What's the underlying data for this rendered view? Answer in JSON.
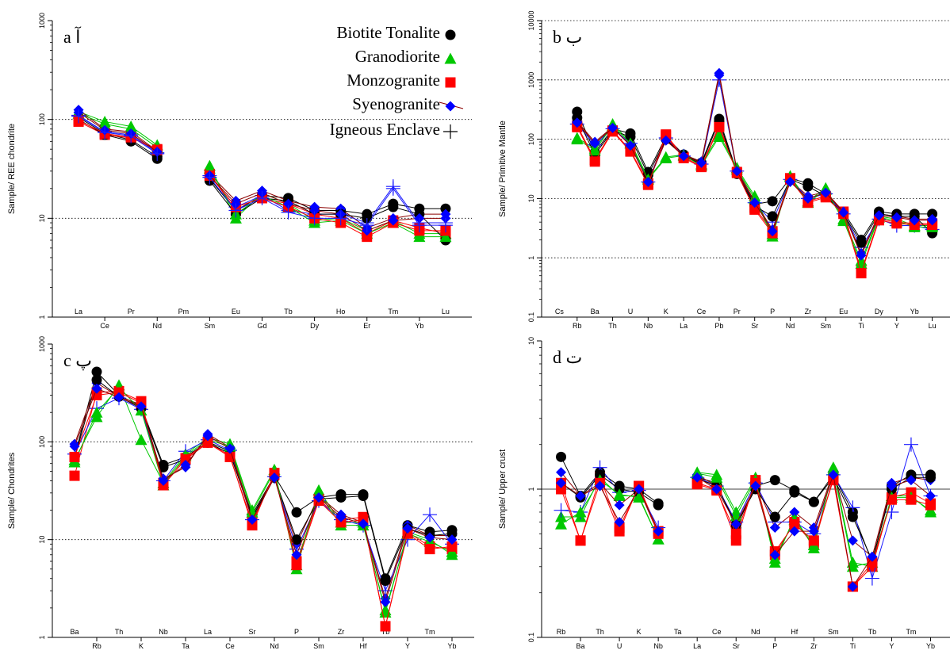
{
  "legend": {
    "entries": [
      {
        "label": "Biotite Tonalite",
        "color": "#000000",
        "marker": "circle"
      },
      {
        "label": "Granodiorite",
        "color": "#00c800",
        "marker": "triangle"
      },
      {
        "label": "Monzogranite",
        "color": "#ff0000",
        "marker": "square"
      },
      {
        "label": "Syenogranite",
        "color": "#0000ff",
        "marker": "diamond",
        "line_color": "#8b0000"
      },
      {
        "label": "Igneous Enclave",
        "color": "#000000",
        "marker": "plus"
      }
    ]
  },
  "chart_data": [
    {
      "type": "line",
      "panel_label": "a آ",
      "ylabel": "Sample/ REE chondrite",
      "yscale": "log",
      "ylim": [
        1,
        1000
      ],
      "yticks": [
        "1",
        "10",
        "100",
        "1000"
      ],
      "gridlines": [
        10,
        100
      ],
      "grid_style": "dotted",
      "categories": [
        "La",
        "Ce",
        "Pr",
        "Nd",
        "Pm",
        "Sm",
        "Eu",
        "Gd",
        "Tb",
        "Dy",
        "Ho",
        "Er",
        "Tm",
        "Yb",
        "Lu"
      ],
      "series": [
        {
          "name": "Biotite Tonalite",
          "values": [
            105,
            72,
            62,
            42,
            null,
            25,
            12,
            17,
            16,
            12,
            12,
            11,
            14,
            12.5,
            12.5
          ]
        },
        {
          "name": "Granodiorite",
          "values": [
            120,
            95,
            85,
            55,
            null,
            34,
            10,
            18,
            14,
            9.5,
            10,
            7.5,
            9.5,
            7,
            7
          ]
        },
        {
          "name": "Monzogranite",
          "values": [
            95,
            70,
            65,
            50,
            null,
            28,
            12,
            16,
            14,
            11,
            10,
            7,
            9.5,
            8,
            7
          ]
        },
        {
          "name": "Syenogranite",
          "values": [
            125,
            80,
            75,
            48,
            null,
            28,
            15,
            19,
            15,
            13,
            12.5,
            8,
            10,
            11,
            11
          ]
        },
        {
          "name": "Igneous Enclave",
          "values": [
            110,
            75,
            70,
            46,
            null,
            27,
            13,
            17,
            12,
            11,
            11,
            9,
            21,
            9,
            9
          ]
        }
      ],
      "extra_series": [
        {
          "series": "Biotite Tonalite",
          "values": [
            100,
            70,
            60,
            40,
            null,
            24,
            11,
            16,
            15,
            11,
            11,
            10,
            13,
            11,
            6
          ]
        },
        {
          "series": "Granodiorite",
          "values": [
            115,
            90,
            80,
            52,
            null,
            32,
            11,
            17,
            13,
            9,
            9.5,
            7,
            9,
            6.5,
            6.5
          ]
        },
        {
          "series": "Monzogranite",
          "values": [
            98,
            72,
            66,
            49,
            null,
            27,
            13,
            16,
            13,
            10,
            9,
            6.5,
            9,
            7.5,
            7.5
          ]
        },
        {
          "series": "Syenogranite",
          "values": [
            118,
            78,
            72,
            47,
            null,
            27,
            14,
            18,
            14,
            12,
            11,
            7.5,
            9.5,
            10,
            10
          ]
        },
        {
          "series": "Igneous Enclave",
          "values": [
            108,
            74,
            68,
            45,
            null,
            26,
            12,
            16,
            11.5,
            10,
            10,
            8.5,
            20,
            8.5,
            8.5
          ]
        }
      ]
    },
    {
      "type": "line",
      "panel_label": "b ب",
      "ylabel": "Sample/ Primitive Mantle",
      "yscale": "log",
      "ylim": [
        0.1,
        10000
      ],
      "yticks": [
        "0.1",
        "1",
        "10",
        "100",
        "1000",
        "10000"
      ],
      "gridlines": [
        1,
        10,
        100,
        1000,
        10000
      ],
      "grid_style": "dotted",
      "categories": [
        "Cs",
        "Rb",
        "Ba",
        "Th",
        "U",
        "Nb",
        "K",
        "La",
        "Ce",
        "Pb",
        "Pr",
        "Sr",
        "P",
        "Nd",
        "Zr",
        "Sm",
        "Eu",
        "Ti",
        "Dy",
        "Y",
        "Yb",
        "Lu"
      ],
      "series": [
        {
          "name": "Biotite Tonalite",
          "values": [
            null,
            290,
            60,
            150,
            125,
            28,
            110,
            55,
            40,
            220,
            28,
            8,
            9,
            22,
            18,
            12,
            6,
            2,
            6,
            5.5,
            5.5,
            5.5
          ]
        },
        {
          "name": "Granodiorite",
          "values": [
            null,
            105,
            70,
            180,
            90,
            22,
            50,
            55,
            38,
            120,
            33,
            11,
            2.5,
            24,
            9,
            15,
            4.5,
            0.9,
            5,
            4.5,
            3.5,
            3.5
          ]
        },
        {
          "name": "Monzogranite",
          "values": [
            null,
            170,
            45,
            140,
            65,
            18,
            120,
            50,
            35,
            170,
            28,
            7,
            2.8,
            22,
            9,
            11,
            6,
            0.6,
            4.5,
            4,
            3.8,
            3.8
          ]
        },
        {
          "name": "Syenogranite",
          "values": [
            null,
            200,
            90,
            160,
            80,
            20,
            100,
            55,
            42,
            1300,
            30,
            9,
            3,
            20,
            11,
            13,
            6,
            1.2,
            5.5,
            5,
            4.5,
            4.5
          ]
        },
        {
          "name": "Igneous Enclave",
          "values": [
            null,
            180,
            80,
            150,
            85,
            19,
            105,
            52,
            38,
            1000,
            29,
            8.5,
            4,
            21,
            10,
            12,
            5.5,
            1.5,
            4.5,
            3.5,
            3.5,
            3
          ]
        }
      ],
      "extra_series": [
        {
          "series": "Biotite Tonalite",
          "values": [
            null,
            230,
            55,
            140,
            110,
            25,
            100,
            52,
            38,
            200,
            26,
            7.5,
            5,
            21,
            16,
            11,
            5.5,
            1.8,
            5.5,
            5,
            5,
            2.6
          ]
        },
        {
          "series": "Granodiorite",
          "values": [
            null,
            100,
            65,
            170,
            85,
            21,
            48,
            53,
            36,
            110,
            31,
            10,
            2.3,
            23,
            8.5,
            14,
            4.2,
            0.8,
            4.8,
            4.2,
            3.3,
            3.3
          ]
        },
        {
          "name": "Monzogranite",
          "series": "Monzogranite",
          "values": [
            null,
            160,
            42,
            135,
            62,
            17,
            115,
            48,
            34,
            160,
            27,
            6.5,
            2.6,
            21,
            8.5,
            10.5,
            5.5,
            0.55,
            4.3,
            3.8,
            3.6,
            3.6
          ]
        },
        {
          "series": "Syenogranite",
          "values": [
            null,
            190,
            85,
            155,
            78,
            19,
            95,
            52,
            40,
            1200,
            29,
            8.5,
            2.8,
            19,
            10,
            12.5,
            5.8,
            1.1,
            5.2,
            4.8,
            4.3,
            4.3
          ]
        }
      ]
    },
    {
      "type": "line",
      "panel_label": "c پ",
      "ylabel": "Sample/ Chondrites",
      "yscale": "log",
      "ylim": [
        1,
        1000
      ],
      "yticks": [
        "1",
        "10",
        "100",
        "1000"
      ],
      "gridlines": [
        10,
        100
      ],
      "grid_style": "dotted",
      "categories": [
        "Ba",
        "Rb",
        "Th",
        "K",
        "Nb",
        "Ta",
        "La",
        "Ce",
        "Sr",
        "Nd",
        "P",
        "Sm",
        "Zr",
        "Hf",
        "Tb",
        "Y",
        "Tm",
        "Yb"
      ],
      "series": [
        {
          "name": "Biotite Tonalite",
          "values": [
            70,
            520,
            300,
            230,
            58,
            70,
            100,
            80,
            18,
            45,
            19,
            27,
            29,
            29,
            4,
            14,
            12,
            12.5
          ]
        },
        {
          "name": "Granodiorite",
          "values": [
            65,
            180,
            380,
            105,
            38,
            75,
            110,
            95,
            20,
            52,
            5,
            32,
            15,
            15,
            1.8,
            12,
            10,
            7
          ]
        },
        {
          "name": "Monzogranite",
          "values": [
            45,
            320,
            330,
            260,
            38,
            68,
            100,
            72,
            14,
            48,
            6,
            26,
            16,
            17,
            1.3,
            12,
            8.5,
            8
          ]
        },
        {
          "name": "Syenogranite",
          "values": [
            95,
            400,
            290,
            240,
            42,
            55,
            120,
            88,
            17,
            45,
            9,
            28,
            18,
            15,
            2.5,
            14,
            11,
            11
          ]
        },
        {
          "name": "Igneous Enclave",
          "values": [
            75,
            220,
            280,
            215,
            40,
            80,
            105,
            82,
            16,
            44,
            8,
            25,
            16,
            14,
            3,
            10,
            18,
            9
          ]
        }
      ],
      "extra_series": [
        {
          "series": "Biotite Tonalite",
          "values": [
            68,
            430,
            290,
            220,
            55,
            66,
            98,
            76,
            17,
            43,
            10,
            26,
            27,
            28,
            3.8,
            13,
            11,
            11.5
          ]
        },
        {
          "series": "Granodiorite",
          "values": [
            62,
            200,
            360,
            210,
            36,
            72,
            105,
            90,
            19,
            50,
            5.5,
            30,
            14,
            14,
            1.9,
            11.5,
            9.5,
            7.5
          ]
        },
        {
          "series": "Monzogranite",
          "values": [
            70,
            300,
            320,
            250,
            36,
            66,
            98,
            70,
            15,
            46,
            5.5,
            25,
            15,
            16,
            1.3,
            11.5,
            8,
            8.5
          ]
        },
        {
          "series": "Syenogranite",
          "values": [
            90,
            350,
            285,
            230,
            40,
            58,
            115,
            85,
            16,
            43,
            7,
            27,
            17,
            14.5,
            2.3,
            13,
            10.5,
            10
          ]
        }
      ]
    },
    {
      "type": "line",
      "panel_label": "d ت",
      "ylabel": "Sample/ Upper crust",
      "yscale": "log",
      "ylim": [
        0.1,
        10
      ],
      "yticks": [
        "0.1",
        "1",
        "10"
      ],
      "gridlines": [
        1
      ],
      "grid_style": "solid",
      "categories": [
        "Rb",
        "Ba",
        "Th",
        "U",
        "K",
        "Nb",
        "Ta",
        "La",
        "Ce",
        "Sr",
        "Nd",
        "P",
        "Hf",
        "Zr",
        "Sm",
        "Ti",
        "Tb",
        "Y",
        "Tm",
        "Yb"
      ],
      "series": [
        {
          "name": "Biotite Tonalite",
          "values": [
            1.65,
            0.9,
            1.3,
            1.05,
            1.0,
            0.8,
            null,
            1.2,
            1.1,
            0.55,
            1.05,
            1.15,
            0.98,
            0.82,
            1.25,
            0.7,
            0.32,
            1.05,
            1.25,
            1.25
          ]
        },
        {
          "name": "Granodiorite",
          "values": [
            0.65,
            0.65,
            1.2,
            0.9,
            0.9,
            0.46,
            null,
            1.3,
            1.25,
            0.7,
            1.2,
            0.32,
            0.65,
            0.4,
            1.4,
            0.32,
            0.3,
            0.9,
            0.9,
            0.7
          ]
        },
        {
          "name": "Monzogranite",
          "values": [
            1.0,
            0.45,
            1.2,
            0.55,
            1.05,
            0.52,
            null,
            1.1,
            1.0,
            0.45,
            1.15,
            0.36,
            0.6,
            0.42,
            1.2,
            0.22,
            0.3,
            0.88,
            0.95,
            0.8
          ]
        },
        {
          "name": "Syenogranite",
          "values": [
            1.3,
            0.9,
            1.1,
            0.78,
            1.0,
            0.5,
            null,
            1.25,
            1.05,
            0.6,
            1.1,
            0.55,
            0.7,
            0.55,
            1.3,
            0.45,
            0.35,
            1.1,
            1.2,
            1.15
          ]
        },
        {
          "name": "Igneous Enclave",
          "values": [
            0.72,
            0.7,
            1.4,
            0.95,
            0.98,
            0.55,
            null,
            1.2,
            1.05,
            0.6,
            1.1,
            0.6,
            0.6,
            0.5,
            1.25,
            0.75,
            0.25,
            0.7,
            2.0,
            0.9
          ]
        }
      ],
      "extra_series": [
        {
          "series": "Biotite Tonalite",
          "values": [
            1.1,
            0.88,
            1.25,
            1.0,
            0.95,
            0.78,
            null,
            1.18,
            1.05,
            0.58,
            1.0,
            0.65,
            0.95,
            0.82,
            1.2,
            0.65,
            0.33,
            1.0,
            1.2,
            1.2
          ]
        },
        {
          "series": "Granodiorite",
          "values": [
            0.58,
            0.7,
            1.15,
            0.92,
            0.88,
            0.46,
            null,
            1.28,
            1.2,
            0.66,
            1.15,
            0.34,
            0.62,
            0.42,
            1.35,
            0.3,
            0.32,
            0.88,
            0.88,
            0.72
          ]
        },
        {
          "series": "Monzogranite",
          "values": [
            1.1,
            0.45,
            1.1,
            0.52,
            1.05,
            0.5,
            null,
            1.08,
            0.98,
            0.5,
            1.1,
            0.38,
            0.58,
            0.45,
            1.15,
            0.22,
            0.32,
            0.85,
            0.85,
            0.78
          ]
        },
        {
          "series": "Syenogranite",
          "values": [
            1.1,
            0.9,
            1.05,
            0.6,
            1.0,
            0.52,
            null,
            1.2,
            1.0,
            0.58,
            1.05,
            0.36,
            0.52,
            0.52,
            1.25,
            0.22,
            0.35,
            1.05,
            1.15,
            0.9
          ]
        }
      ]
    }
  ]
}
